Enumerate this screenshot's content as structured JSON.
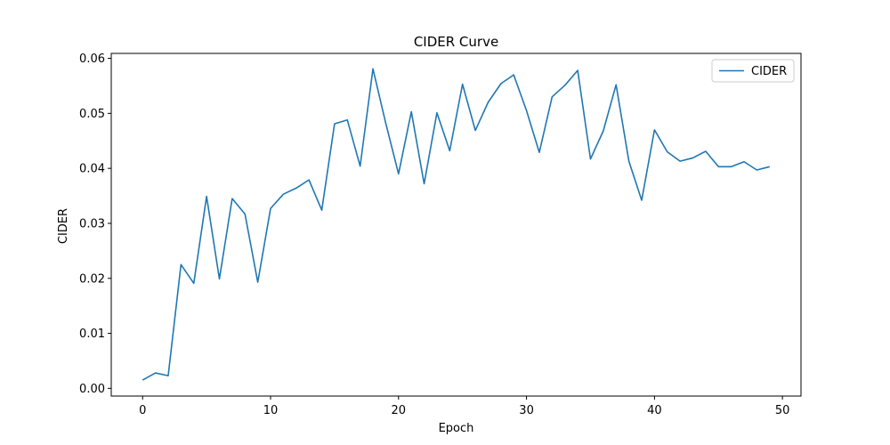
{
  "chart_data": {
    "type": "line",
    "title": "CIDER Curve",
    "xlabel": "Epoch",
    "ylabel": "CIDER",
    "xlim": [
      -2.45,
      51.45
    ],
    "ylim": [
      -0.0014,
      0.0609
    ],
    "grid": false,
    "legend_position": "top-right",
    "x_ticks": [
      0,
      10,
      20,
      30,
      40,
      50
    ],
    "x_tick_labels": [
      "0",
      "10",
      "20",
      "30",
      "40",
      "50"
    ],
    "y_ticks": [
      0.0,
      0.01,
      0.02,
      0.03,
      0.04,
      0.05,
      0.06
    ],
    "y_tick_labels": [
      "0.00",
      "0.01",
      "0.02",
      "0.03",
      "0.04",
      "0.05",
      "0.06"
    ],
    "x": [
      0,
      1,
      2,
      3,
      4,
      5,
      6,
      7,
      8,
      9,
      10,
      11,
      12,
      13,
      14,
      15,
      16,
      17,
      18,
      19,
      20,
      21,
      22,
      23,
      24,
      25,
      26,
      27,
      28,
      29,
      30,
      31,
      32,
      33,
      34,
      35,
      36,
      37,
      38,
      39,
      40,
      41,
      42,
      43,
      44,
      45,
      46,
      47,
      48,
      49
    ],
    "series": [
      {
        "name": "CIDER",
        "color": "#1f77b4",
        "values": [
          0.0015,
          0.0028,
          0.0023,
          0.0225,
          0.0191,
          0.0349,
          0.0199,
          0.0345,
          0.0317,
          0.0193,
          0.0327,
          0.0353,
          0.0364,
          0.0379,
          0.0324,
          0.0481,
          0.0488,
          0.0404,
          0.0581,
          0.0482,
          0.039,
          0.0503,
          0.0372,
          0.0501,
          0.0432,
          0.0553,
          0.0469,
          0.052,
          0.0554,
          0.057,
          0.0505,
          0.0429,
          0.053,
          0.0551,
          0.0578,
          0.0417,
          0.0468,
          0.0552,
          0.0413,
          0.0342,
          0.047,
          0.043,
          0.0413,
          0.0419,
          0.0431,
          0.0403,
          0.0403,
          0.0412,
          0.0397,
          0.0403
        ]
      }
    ]
  }
}
